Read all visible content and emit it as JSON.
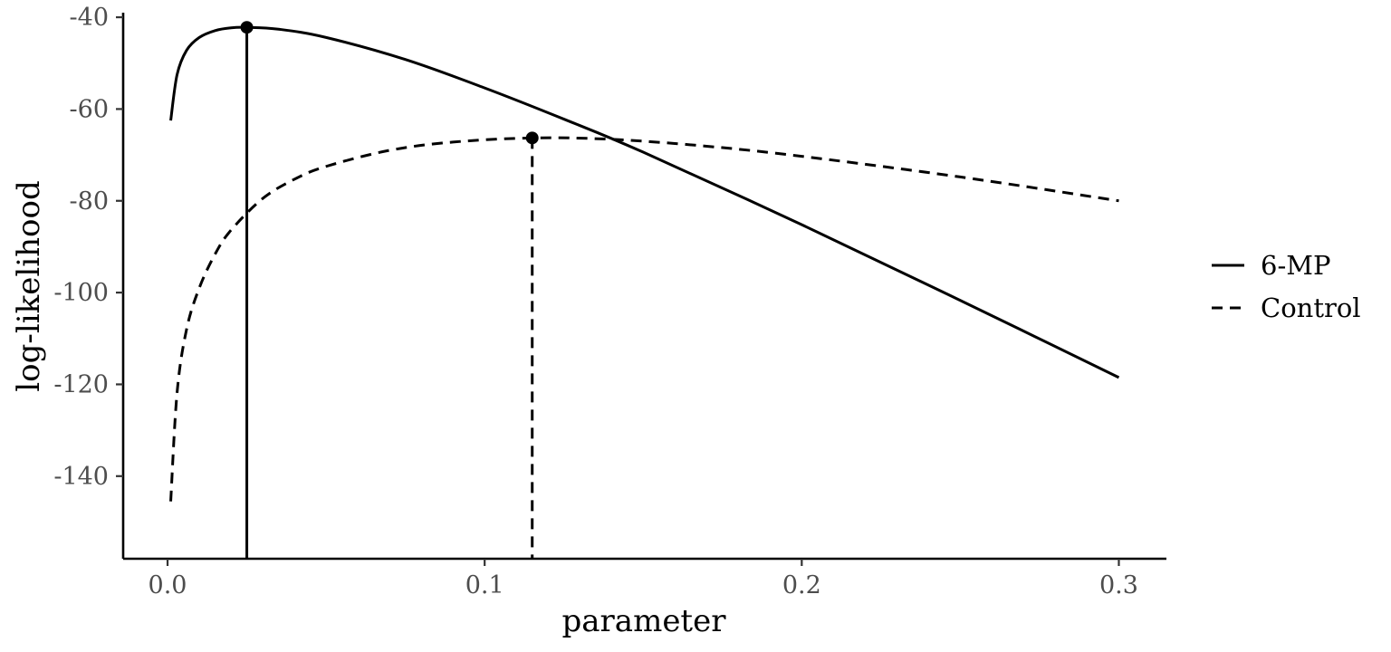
{
  "chart_data": {
    "type": "line",
    "title": "",
    "xlabel": "parameter",
    "ylabel": "log-likelihood",
    "xlim": [
      -0.014,
      0.315
    ],
    "ylim": [
      -158,
      -39
    ],
    "x_ticks": [
      {
        "value": 0.0,
        "label": "0.0"
      },
      {
        "value": 0.1,
        "label": "0.1"
      },
      {
        "value": 0.2,
        "label": "0.2"
      },
      {
        "value": 0.3,
        "label": "0.3"
      }
    ],
    "y_ticks": [
      {
        "value": -40,
        "label": "-40"
      },
      {
        "value": -60,
        "label": "-60"
      },
      {
        "value": -80,
        "label": "-80"
      },
      {
        "value": -100,
        "label": "-100"
      },
      {
        "value": -120,
        "label": "-120"
      },
      {
        "value": -140,
        "label": "-140"
      }
    ],
    "grid": false,
    "legend_position": "right",
    "series": [
      {
        "name": "6-MP",
        "line_style": "solid",
        "color": "#000000",
        "x": [
          0.001,
          0.003,
          0.006,
          0.01,
          0.015,
          0.02,
          0.025,
          0.035,
          0.05,
          0.075,
          0.1,
          0.125,
          0.15,
          0.2,
          0.25,
          0.3
        ],
        "y": [
          -62.5,
          -52.5,
          -47.2,
          -44.4,
          -42.9,
          -42.3,
          -42.2,
          -42.6,
          -44.4,
          -49.2,
          -55.4,
          -62.2,
          -69.4,
          -85.2,
          -101.7,
          -118.5
        ],
        "mle": {
          "x": 0.025,
          "y": -42.2
        }
      },
      {
        "name": "Control",
        "line_style": "dashed",
        "color": "#000000",
        "x": [
          0.001,
          0.003,
          0.006,
          0.01,
          0.015,
          0.02,
          0.03,
          0.04,
          0.05,
          0.07,
          0.09,
          0.115,
          0.14,
          0.17,
          0.2,
          0.25,
          0.3
        ],
        "y": [
          -145.5,
          -121.8,
          -108.0,
          -99.0,
          -91.6,
          -86.4,
          -79.5,
          -75.3,
          -72.5,
          -69.0,
          -67.2,
          -66.3,
          -66.6,
          -68.1,
          -70.3,
          -74.8,
          -80.0
        ],
        "mle": {
          "x": 0.115,
          "y": -66.3
        }
      }
    ]
  }
}
